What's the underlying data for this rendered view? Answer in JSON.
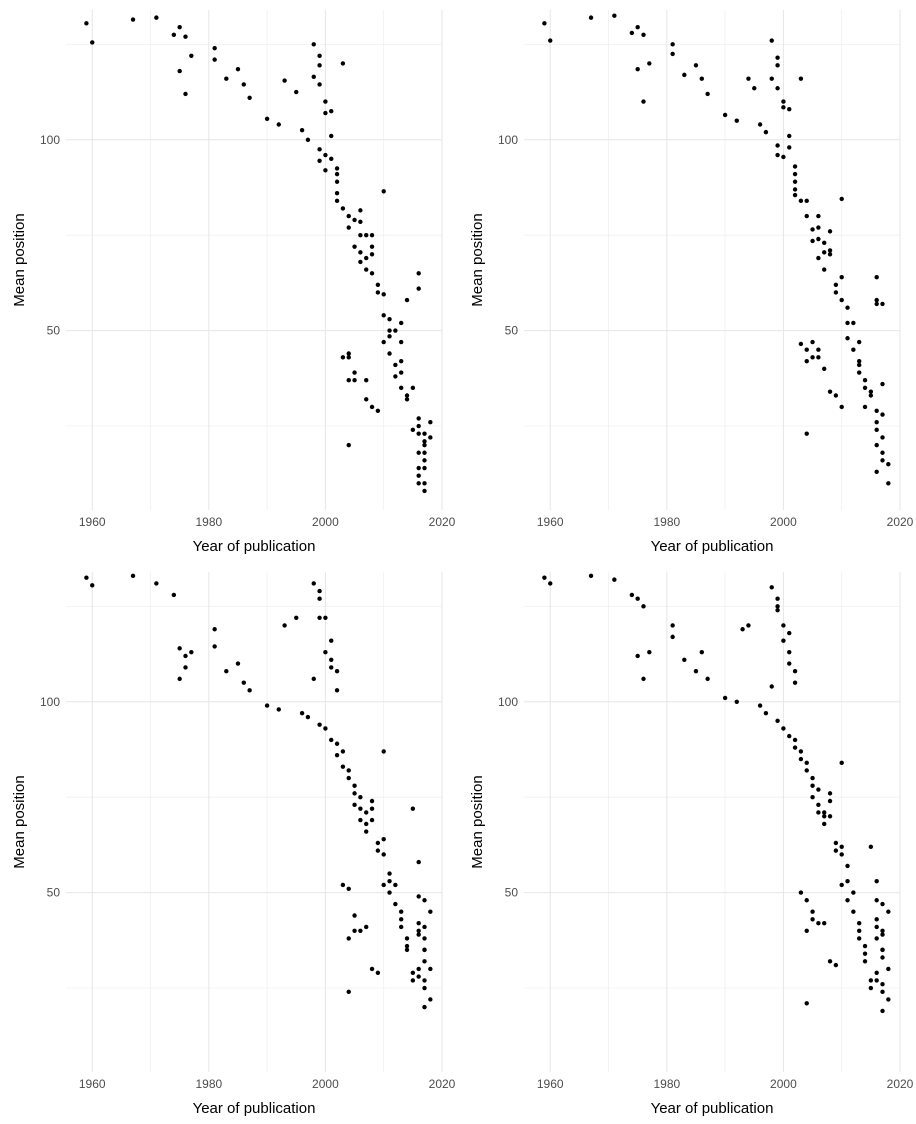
{
  "chart_data": [
    {
      "type": "scatter",
      "xlabel": "Year of publication",
      "ylabel": "Mean position",
      "xlim": [
        1955.5,
        2020
      ],
      "ylim": [
        3,
        134
      ],
      "xticks": [
        1960,
        1980,
        2000,
        2020
      ],
      "yticks": [
        50,
        100
      ],
      "grid": true,
      "point_color": "#000000",
      "series": [
        {
          "name": "",
          "x": [
            1959,
            1960,
            1967,
            1971,
            1974,
            1975,
            1976,
            1975,
            1976,
            1977,
            1981,
            1981,
            1983,
            1985,
            1986,
            1987,
            1990,
            1992,
            1993,
            1995,
            1996,
            1997,
            1998,
            1999,
            1999,
            1998,
            1999,
            2003,
            2000,
            2001,
            2000,
            1999,
            2001,
            2000,
            2001,
            1999,
            2002,
            2000,
            2002,
            2002,
            2002,
            2002,
            2003,
            2004,
            2006,
            2004,
            2005,
            2006,
            2006,
            2005,
            2006,
            2007,
            2006,
            2007,
            2008,
            2008,
            2008,
            2007,
            2008,
            2009,
            2009,
            2010,
            2010,
            2011,
            2010,
            2011,
            2011,
            2011,
            2012,
            2013,
            2013,
            2013,
            2012,
            2013,
            2013,
            2014,
            2012,
            2015,
            2014,
            2016,
            2016,
            2014,
            2015,
            2016,
            2016,
            2017,
            2017,
            2017,
            2016,
            2016,
            2018,
            2017,
            2017,
            2016,
            2016,
            2017,
            2017,
            2016,
            2017,
            2018,
            2010,
            2003,
            2004,
            2004,
            2005,
            2004,
            2005,
            2007,
            2007,
            2008,
            2009,
            2004
          ],
          "y": [
            130.5,
            125.5,
            131.5,
            132,
            127.5,
            129.5,
            127,
            118,
            112,
            122,
            124,
            121,
            116,
            118.5,
            114.5,
            111,
            105.5,
            104,
            115.5,
            112.5,
            102.5,
            100,
            125,
            122,
            119.5,
            116.5,
            114.5,
            120,
            110,
            107.5,
            107,
            97.5,
            101,
            96,
            95,
            94.5,
            92.5,
            92,
            91,
            89,
            86,
            84,
            82,
            80,
            81.5,
            77,
            79,
            78.5,
            75,
            72,
            70.5,
            75,
            68,
            66,
            72,
            75,
            70,
            69,
            65,
            62,
            60,
            59.5,
            54,
            53,
            47,
            48.5,
            44,
            50,
            50,
            52,
            47,
            42,
            41,
            39,
            35,
            33,
            38,
            35,
            58,
            61,
            65,
            32,
            24,
            27,
            25,
            23,
            21,
            20,
            18,
            14,
            22,
            16,
            14,
            12,
            10,
            10,
            8,
            23,
            18,
            26,
            86.5,
            43,
            43,
            37,
            39,
            44,
            37,
            37,
            32,
            30,
            29,
            20
          ]
        }
      ]
    },
    {
      "type": "scatter",
      "xlabel": "Year of publication",
      "ylabel": "Mean position",
      "xlim": [
        1955.5,
        2020
      ],
      "ylim": [
        3,
        134
      ],
      "xticks": [
        1960,
        1980,
        2000,
        2020
      ],
      "yticks": [
        50,
        100
      ],
      "grid": true,
      "point_color": "#000000",
      "series": [
        {
          "name": "",
          "x": [
            1959,
            1960,
            1967,
            1971,
            1974,
            1975,
            1976,
            1975,
            1976,
            1977,
            1981,
            1981,
            1983,
            1985,
            1986,
            1987,
            1990,
            1992,
            1994,
            1995,
            1996,
            1997,
            1998,
            1999,
            1999,
            1998,
            1999,
            2003,
            2000,
            2001,
            2000,
            1999,
            2001,
            2000,
            2001,
            1999,
            2002,
            2002,
            2002,
            2002,
            2002,
            2003,
            2004,
            2004,
            2005,
            2005,
            2006,
            2006,
            2006,
            2007,
            2006,
            2007,
            2007,
            2008,
            2008,
            2008,
            2009,
            2009,
            2010,
            2010,
            2010,
            2011,
            2011,
            2011,
            2012,
            2012,
            2013,
            2013,
            2013,
            2013,
            2014,
            2014,
            2015,
            2014,
            2015,
            2016,
            2016,
            2016,
            2017,
            2017,
            2016,
            2017,
            2016,
            2016,
            2017,
            2016,
            2017,
            2017,
            2018,
            2016,
            2018,
            2003,
            2004,
            2004,
            2005,
            2005,
            2006,
            2006,
            2007,
            2008,
            2009,
            2010,
            2004
          ],
          "y": [
            130.5,
            126,
            132,
            132.5,
            128,
            129.5,
            127.5,
            118.5,
            110,
            120,
            125,
            122.5,
            117,
            119.5,
            116,
            112,
            106.5,
            105,
            116,
            113.5,
            104,
            102,
            126,
            121.5,
            119.5,
            116,
            113.5,
            116,
            110,
            108,
            108.5,
            98.5,
            101,
            95.5,
            98,
            96,
            93,
            91,
            89,
            87,
            85.5,
            84,
            84,
            80,
            76.5,
            73.5,
            80,
            77,
            74,
            73,
            69,
            70.5,
            66,
            70,
            76,
            71,
            60,
            62,
            64,
            58,
            84.5,
            56,
            52,
            48,
            52,
            45,
            47,
            42,
            41,
            39,
            37,
            35,
            33,
            30,
            34,
            64,
            57,
            58,
            57,
            36,
            29,
            28,
            26,
            24,
            22,
            20,
            18,
            16,
            15,
            13,
            10,
            46.5,
            45,
            42,
            47,
            43,
            45,
            43,
            40,
            34,
            33,
            30,
            23
          ]
        }
      ]
    },
    {
      "type": "scatter",
      "xlabel": "Year of publication",
      "ylabel": "Mean position",
      "xlim": [
        1955.5,
        2020
      ],
      "ylim": [
        3,
        134
      ],
      "xticks": [
        1960,
        1980,
        2000,
        2020
      ],
      "yticks": [
        50,
        100
      ],
      "grid": true,
      "point_color": "#000000",
      "series": [
        {
          "name": "",
          "x": [
            1959,
            1960,
            1967,
            1971,
            1974,
            1975,
            1976,
            1975,
            1976,
            1977,
            1981,
            1981,
            1983,
            1985,
            1986,
            1987,
            1990,
            1992,
            1993,
            1995,
            1996,
            1997,
            1998,
            1999,
            1999,
            1998,
            1999,
            2000,
            2001,
            2000,
            2001,
            2001,
            2002,
            2002,
            1999,
            2000,
            2001,
            2002,
            2002,
            2003,
            2003,
            2004,
            2004,
            2005,
            2005,
            2006,
            2005,
            2006,
            2006,
            2007,
            2007,
            2008,
            2007,
            2008,
            2008,
            2009,
            2009,
            2010,
            2010,
            2011,
            2011,
            2010,
            2011,
            2012,
            2012,
            2013,
            2013,
            2013,
            2014,
            2014,
            2014,
            2015,
            2015,
            2016,
            2016,
            2016,
            2017,
            2017,
            2016,
            2017,
            2015,
            2016,
            2017,
            2018,
            2017,
            2016,
            2017,
            2017,
            2018,
            2016,
            2017,
            2018,
            2017,
            2003,
            2004,
            2004,
            2005,
            2005,
            2006,
            2007,
            2008,
            2009,
            2010,
            2004
          ],
          "y": [
            132.5,
            130.5,
            133,
            131,
            128,
            106,
            109,
            114,
            112,
            113,
            119,
            114.5,
            108,
            110,
            105,
            103,
            99,
            98,
            120,
            122,
            97,
            96,
            131,
            129,
            127,
            106,
            122,
            122,
            116,
            113,
            111,
            109,
            108,
            103,
            94,
            93,
            90,
            89,
            86,
            87,
            83,
            82,
            80,
            78,
            76,
            75,
            73,
            72,
            69,
            71,
            68,
            74,
            66,
            69,
            72,
            63,
            61,
            64,
            60,
            55,
            53,
            52,
            50,
            52,
            47,
            45,
            43,
            41,
            38,
            36,
            35,
            29,
            27,
            49,
            42,
            40,
            38,
            35,
            30,
            27,
            72,
            58,
            48,
            45,
            41,
            39,
            35,
            32,
            30,
            28,
            25,
            22,
            20,
            52,
            51,
            38,
            44,
            40,
            40,
            41,
            30,
            29,
            87,
            24
          ]
        }
      ]
    },
    {
      "type": "scatter",
      "xlabel": "Year of publication",
      "ylabel": "Mean position",
      "xlim": [
        1955.5,
        2020
      ],
      "ylim": [
        3,
        134
      ],
      "xticks": [
        1960,
        1980,
        2000,
        2020
      ],
      "yticks": [
        50,
        100
      ],
      "grid": true,
      "point_color": "#000000",
      "series": [
        {
          "name": "",
          "x": [
            1959,
            1960,
            1967,
            1971,
            1974,
            1975,
            1976,
            1975,
            1976,
            1977,
            1981,
            1981,
            1983,
            1985,
            1986,
            1987,
            1990,
            1992,
            1993,
            1994,
            1996,
            1997,
            1998,
            1999,
            1999,
            1998,
            1999,
            2000,
            2001,
            2000,
            2001,
            2001,
            2002,
            2002,
            1999,
            2000,
            2001,
            2002,
            2002,
            2003,
            2003,
            2004,
            2004,
            2005,
            2005,
            2006,
            2005,
            2006,
            2006,
            2007,
            2007,
            2008,
            2007,
            2008,
            2008,
            2009,
            2009,
            2010,
            2010,
            2011,
            2011,
            2010,
            2011,
            2012,
            2012,
            2013,
            2013,
            2013,
            2014,
            2014,
            2014,
            2015,
            2015,
            2016,
            2016,
            2016,
            2017,
            2017,
            2016,
            2017,
            2015,
            2016,
            2017,
            2018,
            2017,
            2016,
            2017,
            2017,
            2018,
            2016,
            2017,
            2018,
            2017,
            2003,
            2004,
            2004,
            2005,
            2005,
            2006,
            2007,
            2008,
            2009,
            2010,
            2004
          ],
          "y": [
            132.5,
            131,
            133,
            132,
            128,
            112,
            106,
            127,
            125,
            113,
            120,
            117,
            111,
            108,
            113,
            106,
            101,
            100,
            119,
            120,
            99,
            97,
            130,
            127,
            124,
            104,
            125,
            120,
            118,
            116,
            113,
            110,
            108,
            105,
            95,
            93,
            91,
            90,
            88,
            87,
            85,
            84,
            82,
            80,
            78,
            77,
            75,
            73,
            71,
            71,
            70,
            76,
            68,
            70,
            74,
            63,
            61,
            62,
            60,
            57,
            53,
            52,
            48,
            50,
            45,
            42,
            40,
            38,
            36,
            34,
            32,
            27,
            25,
            48,
            43,
            41,
            39,
            35,
            29,
            26,
            62,
            53,
            47,
            45,
            40,
            38,
            35,
            33,
            30,
            27,
            24,
            22,
            19,
            50,
            48,
            40,
            45,
            43,
            42,
            42,
            32,
            31,
            84,
            21
          ]
        }
      ]
    }
  ]
}
